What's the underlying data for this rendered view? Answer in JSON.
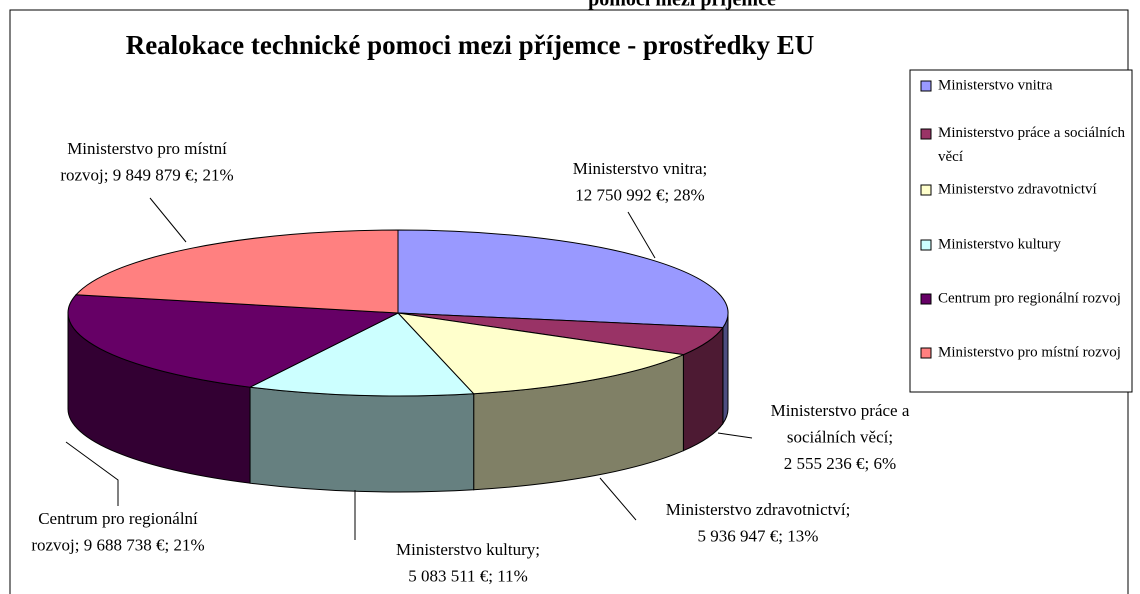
{
  "header_fragment": "pomoci mezi příjemce",
  "chart_data": {
    "type": "pie3d",
    "title": "Realokace technické pomoci mezi příjemce - prostředky EU",
    "categories": [
      "Ministerstvo vnitra",
      "Ministerstvo práce a sociálních věcí",
      "Ministerstvo zdravotnictví",
      "Ministerstvo kultury",
      "Centrum pro regionální rozvoj",
      "Ministerstvo pro místní rozvoj"
    ],
    "values": [
      12750992,
      2555236,
      5936947,
      5083511,
      9688738,
      9849879
    ],
    "value_labels": [
      [
        "Ministerstvo vnitra;",
        "12 750 992 €; 28%"
      ],
      [
        "Ministerstvo práce a",
        "sociálních věcí;",
        "2 555 236 €; 6%"
      ],
      [
        "Ministerstvo zdravotnictví;",
        "5 936 947 €; 13%"
      ],
      [
        "Ministerstvo kultury;",
        "5 083 511 €; 11%"
      ],
      [
        "Centrum pro regionální",
        "rozvoj; 9 688 738 €; 21%"
      ],
      [
        "Ministerstvo pro místní",
        "rozvoj; 9 849 879 €; 21%"
      ]
    ],
    "colors": [
      "#9999ff",
      "#993366",
      "#ffffcc",
      "#ccffff",
      "#660066",
      "#ff8080"
    ],
    "legend": "right"
  }
}
